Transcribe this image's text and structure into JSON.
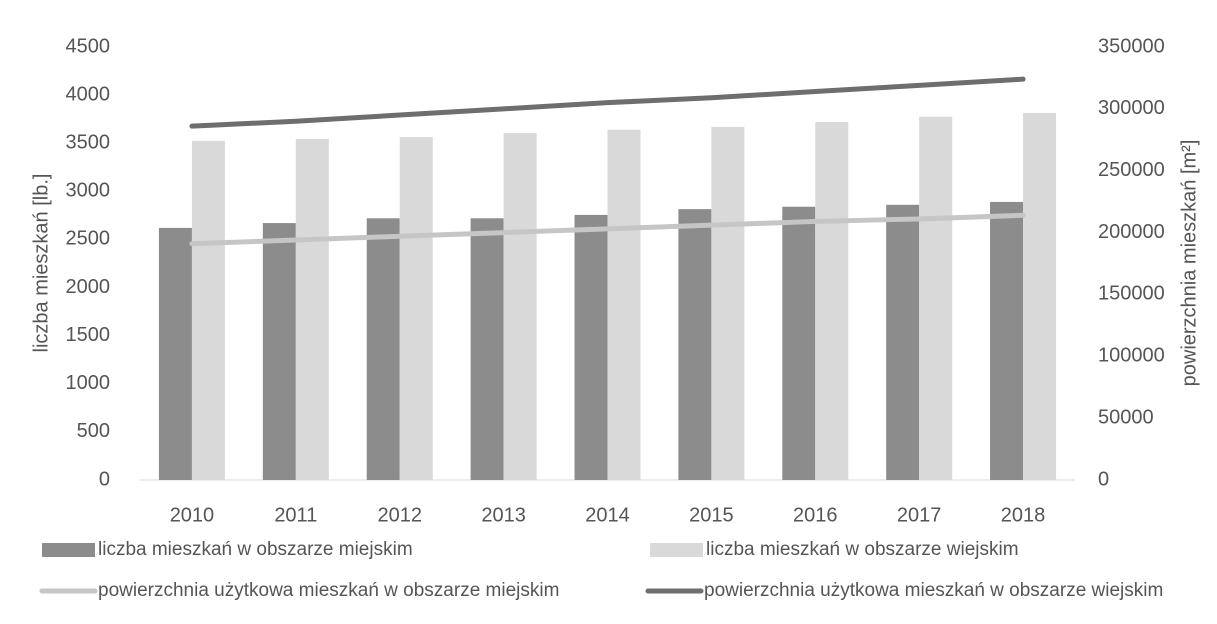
{
  "chart_data": {
    "type": "bar",
    "categories": [
      "2010",
      "2011",
      "2012",
      "2013",
      "2014",
      "2015",
      "2016",
      "2017",
      "2018"
    ],
    "ylabel": "liczba mieszkań [lb.]",
    "y2label": "powierzchnia mieszkań [m²]",
    "ylim": [
      0,
      4500
    ],
    "yticks": [
      0,
      500,
      1000,
      1500,
      2000,
      2500,
      3000,
      3500,
      4000,
      4500
    ],
    "y2lim": [
      0,
      350000
    ],
    "y2ticks": [
      0,
      50000,
      100000,
      150000,
      200000,
      250000,
      300000,
      350000
    ],
    "grid": false,
    "series": [
      {
        "name": "liczba mieszkań w obszarze miejskim",
        "type": "bar",
        "color": "#8c8c8c",
        "values": [
          2620,
          2670,
          2720,
          2720,
          2755,
          2815,
          2840,
          2860,
          2890
        ]
      },
      {
        "name": "liczba mieszkań w obszarze wiejskim",
        "type": "bar",
        "color": "#d9d9d9",
        "values": [
          3525,
          3545,
          3565,
          3605,
          3640,
          3670,
          3720,
          3775,
          3815
        ]
      },
      {
        "name": "powierzchnia użytkowa mieszkań w obszarze miejskim",
        "type": "line",
        "axis": "y2",
        "color": "#c6c6c6",
        "values": [
          191000,
          194000,
          197000,
          200000,
          203000,
          206000,
          209000,
          211000,
          214000
        ]
      },
      {
        "name": "powierzchnia użytkowa mieszkań w obszarze wiejskim",
        "type": "line",
        "axis": "y2",
        "color": "#6e6e6e",
        "values": [
          286000,
          290000,
          295000,
          300000,
          305000,
          309000,
          314000,
          319000,
          324000
        ]
      }
    ]
  }
}
